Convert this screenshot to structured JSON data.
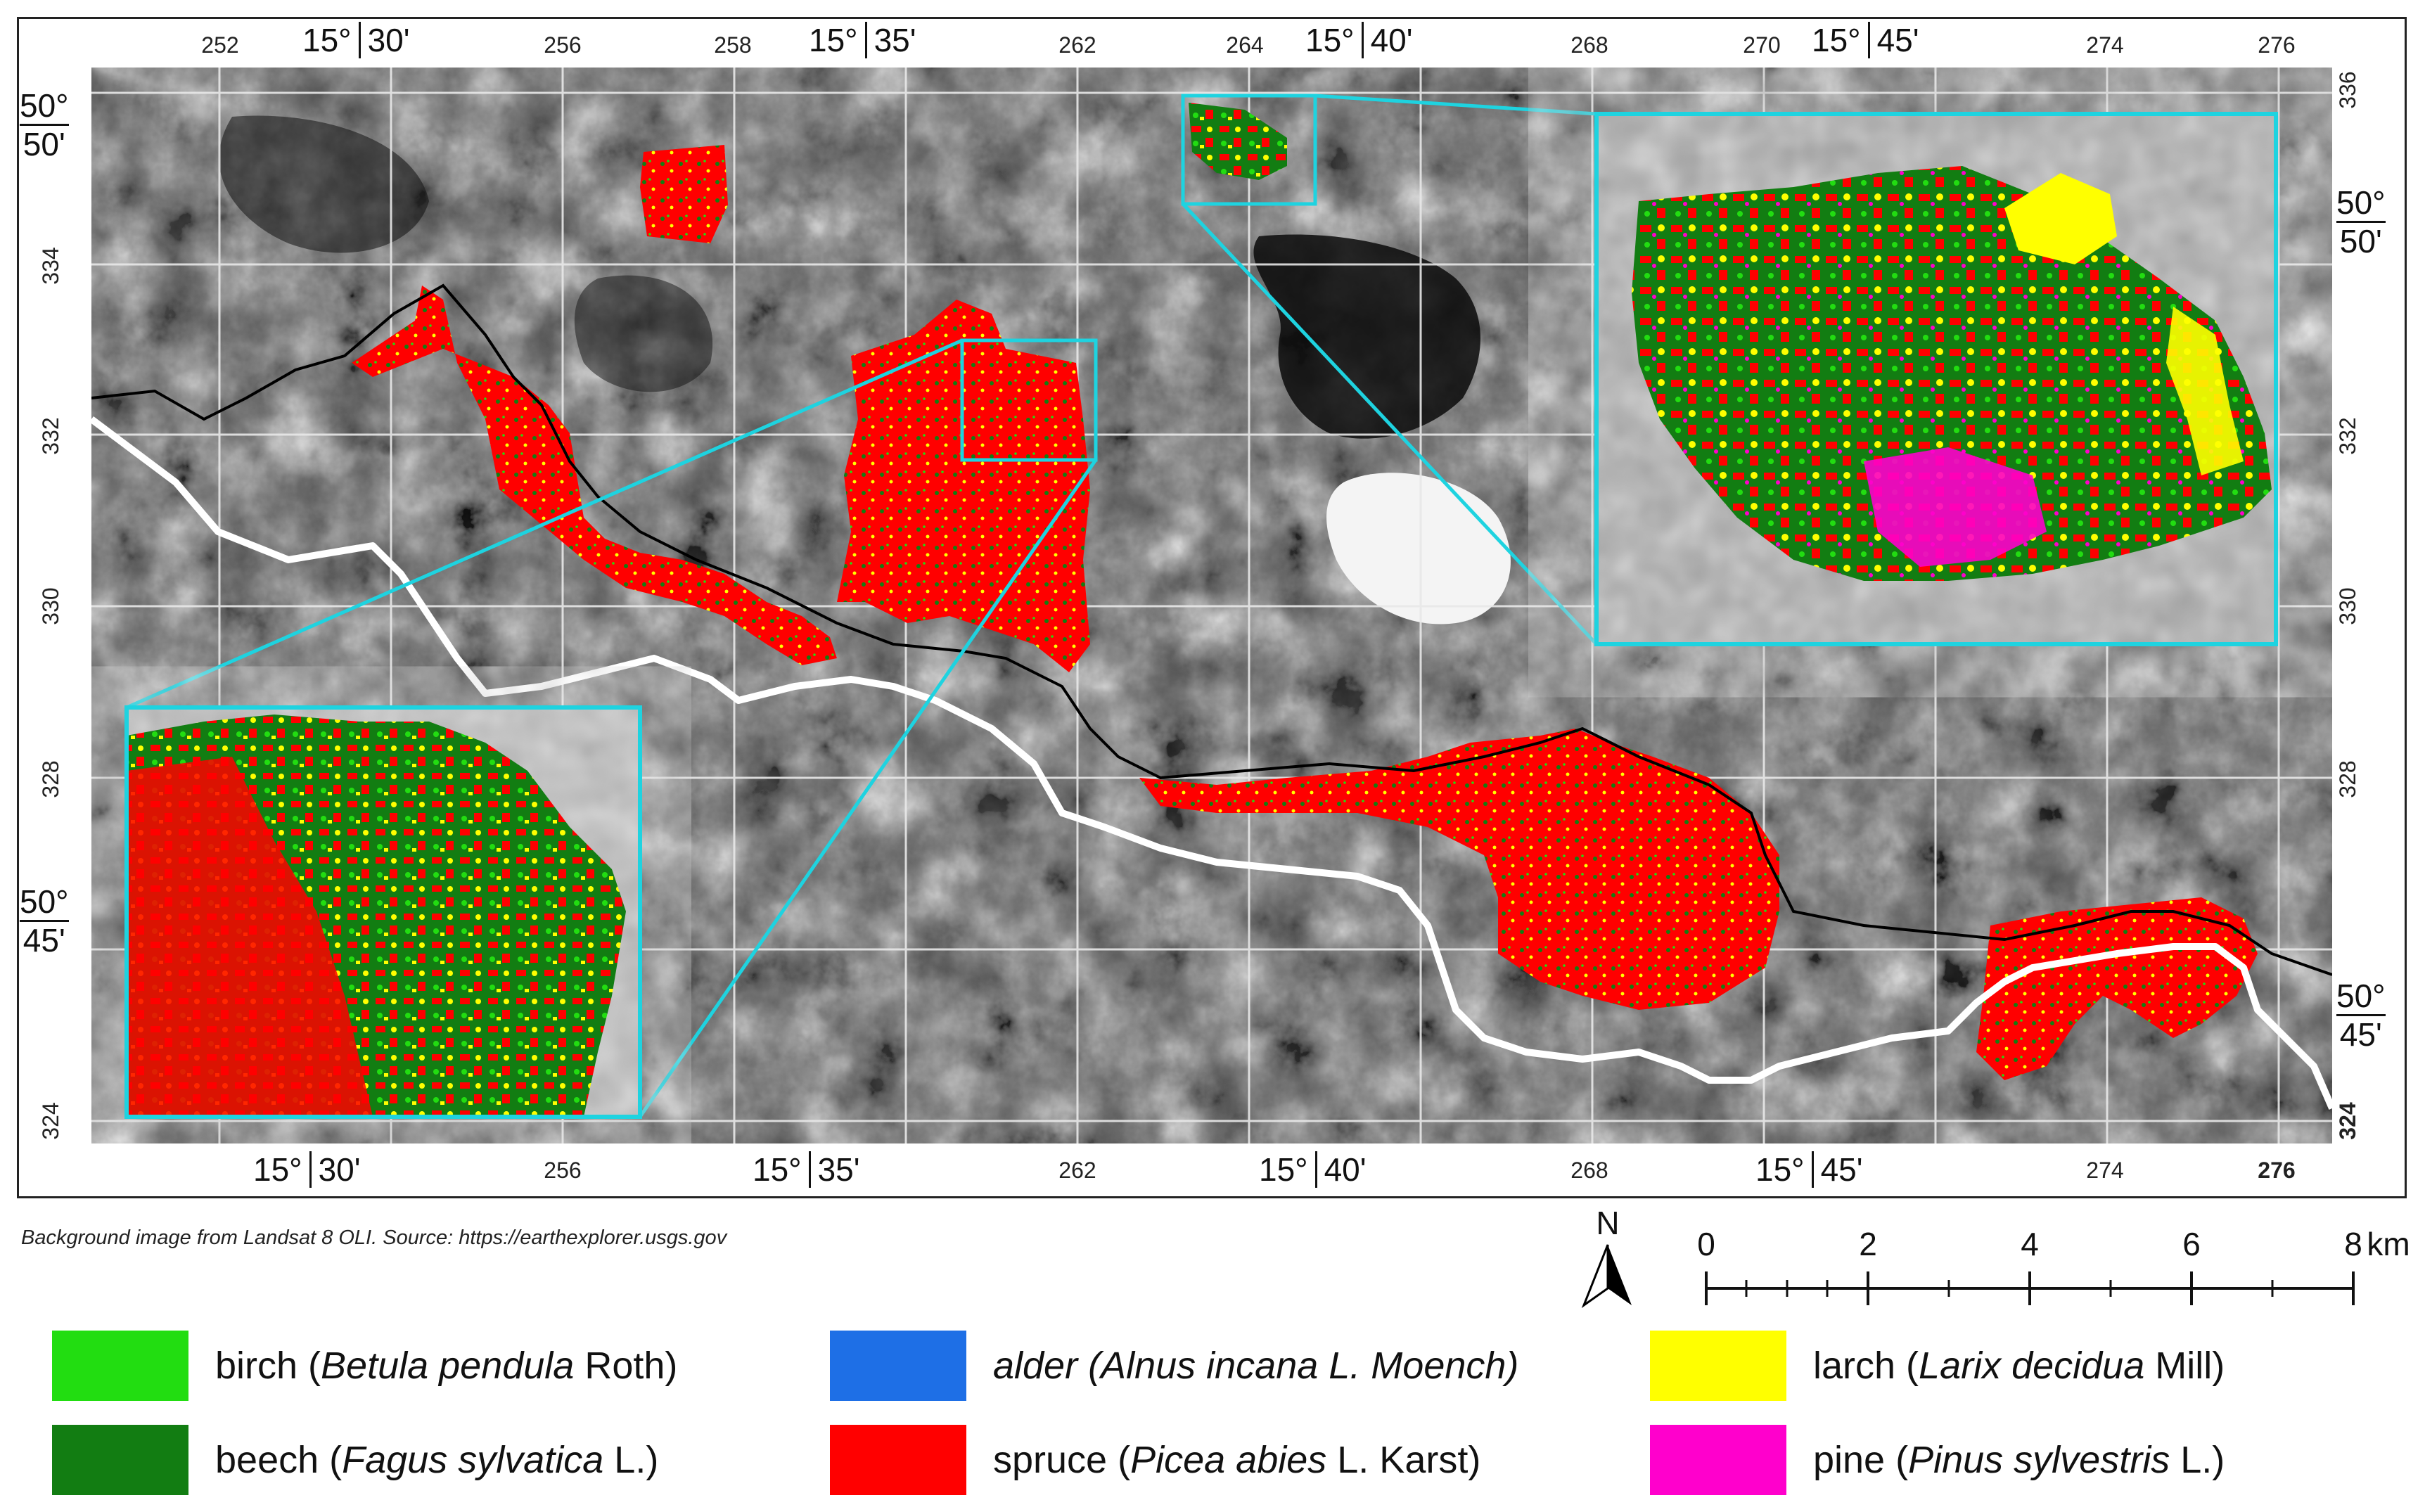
{
  "map": {
    "source_note": "Background image from Landsat 8 OLI. Source: https://earthexplorer.usgs.gov",
    "top_ticks": [
      "252",
      "256",
      "258",
      "262",
      "264",
      "268",
      "270",
      "274",
      "276"
    ],
    "bottom_ticks": [
      "256",
      "262",
      "268",
      "274",
      "276"
    ],
    "left_ticks": [
      "334",
      "332",
      "330",
      "328",
      "324"
    ],
    "right_ticks": [
      "336",
      "332",
      "330",
      "328",
      "324"
    ],
    "top_coords": [
      {
        "deg": "15°",
        "min": "30'"
      },
      {
        "deg": "15°",
        "min": "35'"
      },
      {
        "deg": "15°",
        "min": "40'"
      },
      {
        "deg": "15°",
        "min": "45'"
      }
    ],
    "bottom_coords": [
      {
        "deg": "15°",
        "min": "30'"
      },
      {
        "deg": "15°",
        "min": "35'"
      },
      {
        "deg": "15°",
        "min": "40'"
      },
      {
        "deg": "15°",
        "min": "45'"
      }
    ],
    "left_coords": [
      {
        "deg": "50°",
        "min": "50'"
      },
      {
        "deg": "50°",
        "min": "45'"
      }
    ],
    "right_coords": [
      {
        "deg": "50°",
        "min": "50'"
      },
      {
        "deg": "50°",
        "min": "45'"
      }
    ],
    "north_label": "N",
    "scale_labels": [
      "0",
      "2",
      "4",
      "6",
      "8"
    ],
    "scale_unit": "km"
  },
  "legend": [
    {
      "id": "birch",
      "plain": "birch (",
      "italic": "Betula pendula",
      "suffix": " Roth)",
      "color": "#22dd11"
    },
    {
      "id": "alder",
      "plain": "",
      "italic": "alder (Alnus incana L. Moench)",
      "suffix": "",
      "color": "#1e6fe6"
    },
    {
      "id": "larch",
      "plain": "larch (",
      "italic": "Larix decidua",
      "suffix": " Mill)",
      "color": "#ffff00"
    },
    {
      "id": "beech",
      "plain": "beech (",
      "italic": "Fagus sylvatica",
      "suffix": " L.)",
      "color": "#127d12"
    },
    {
      "id": "spruce",
      "plain": "spruce (",
      "italic": "Picea abies",
      "suffix": " L. Karst)",
      "color": "#ff0000"
    },
    {
      "id": "pine",
      "plain": "pine (",
      "italic": "Pinus sylvestris",
      "suffix": " L.)",
      "color": "#ff00cc"
    }
  ]
}
